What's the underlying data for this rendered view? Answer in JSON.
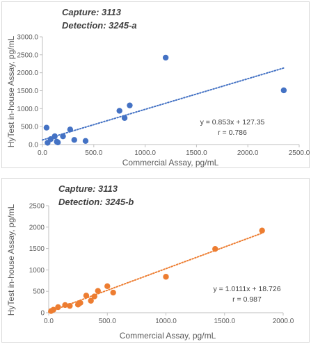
{
  "chart_data": [
    {
      "type": "scatter",
      "caption_capture": "Capture:    3113",
      "caption_detection": "Detection: 3245-a",
      "xlabel": "Commercial Assay, pg/mL",
      "ylabel": "HyTest in-house Assay, pg/mL",
      "xlim": [
        0,
        2500
      ],
      "ylim": [
        0,
        3000
      ],
      "xticks": [
        0,
        500,
        1000,
        1500,
        2000,
        2500
      ],
      "xtick_labels": [
        "0.0",
        "500.0",
        "1000.0",
        "1500.0",
        "2000.0",
        "2500.0"
      ],
      "yticks": [
        0,
        500,
        1000,
        1500,
        2000,
        2500,
        3000
      ],
      "ytick_labels": [
        "0.0",
        "500.0",
        "1000.0",
        "1500.0",
        "2000.0",
        "2500.0",
        "3000.0"
      ],
      "color": "#4472c4",
      "points": [
        {
          "x": 40,
          "y": 470
        },
        {
          "x": 50,
          "y": 50
        },
        {
          "x": 80,
          "y": 150
        },
        {
          "x": 120,
          "y": 230
        },
        {
          "x": 140,
          "y": 80
        },
        {
          "x": 150,
          "y": 60
        },
        {
          "x": 200,
          "y": 230
        },
        {
          "x": 270,
          "y": 420
        },
        {
          "x": 310,
          "y": 130
        },
        {
          "x": 420,
          "y": 100
        },
        {
          "x": 750,
          "y": 940
        },
        {
          "x": 800,
          "y": 740
        },
        {
          "x": 850,
          "y": 1090
        },
        {
          "x": 1200,
          "y": 2420
        },
        {
          "x": 2350,
          "y": 1510
        }
      ],
      "trendline": {
        "slope": 0.853,
        "intercept": 127.35,
        "x_range": [
          0,
          2350
        ]
      },
      "equation": "y = 0.853x + 127.35",
      "r_text": "r = 0.786"
    },
    {
      "type": "scatter",
      "caption_capture": "Capture:    3113",
      "caption_detection": "Detection: 3245-b",
      "xlabel": "Commercial Assay, pg/mL",
      "ylabel": "HyTest in-house Assay, pg/mL",
      "xlim": [
        0,
        2000
      ],
      "ylim": [
        0,
        2500
      ],
      "xticks": [
        0,
        500,
        1000,
        1500,
        2000
      ],
      "xtick_labels": [
        "0.0",
        "500.0",
        "1000.0",
        "1500.0",
        "2000.0"
      ],
      "yticks": [
        0,
        500,
        1000,
        1500,
        2000,
        2500
      ],
      "ytick_labels": [
        "0",
        "500",
        "1000",
        "1500",
        "2000",
        "2500"
      ],
      "color": "#ed7d31",
      "points": [
        {
          "x": 20,
          "y": 40
        },
        {
          "x": 40,
          "y": 70
        },
        {
          "x": 80,
          "y": 130
        },
        {
          "x": 140,
          "y": 180
        },
        {
          "x": 180,
          "y": 160
        },
        {
          "x": 250,
          "y": 190
        },
        {
          "x": 270,
          "y": 230
        },
        {
          "x": 320,
          "y": 400
        },
        {
          "x": 360,
          "y": 280
        },
        {
          "x": 390,
          "y": 380
        },
        {
          "x": 420,
          "y": 510
        },
        {
          "x": 500,
          "y": 620
        },
        {
          "x": 550,
          "y": 470
        },
        {
          "x": 1000,
          "y": 840
        },
        {
          "x": 1420,
          "y": 1490
        },
        {
          "x": 1820,
          "y": 1920
        }
      ],
      "trendline": {
        "slope": 1.0111,
        "intercept": 18.726,
        "x_range": [
          0,
          1820
        ]
      },
      "equation": "y = 1.0111x + 18.726",
      "r_text": "r = 0.987"
    }
  ]
}
